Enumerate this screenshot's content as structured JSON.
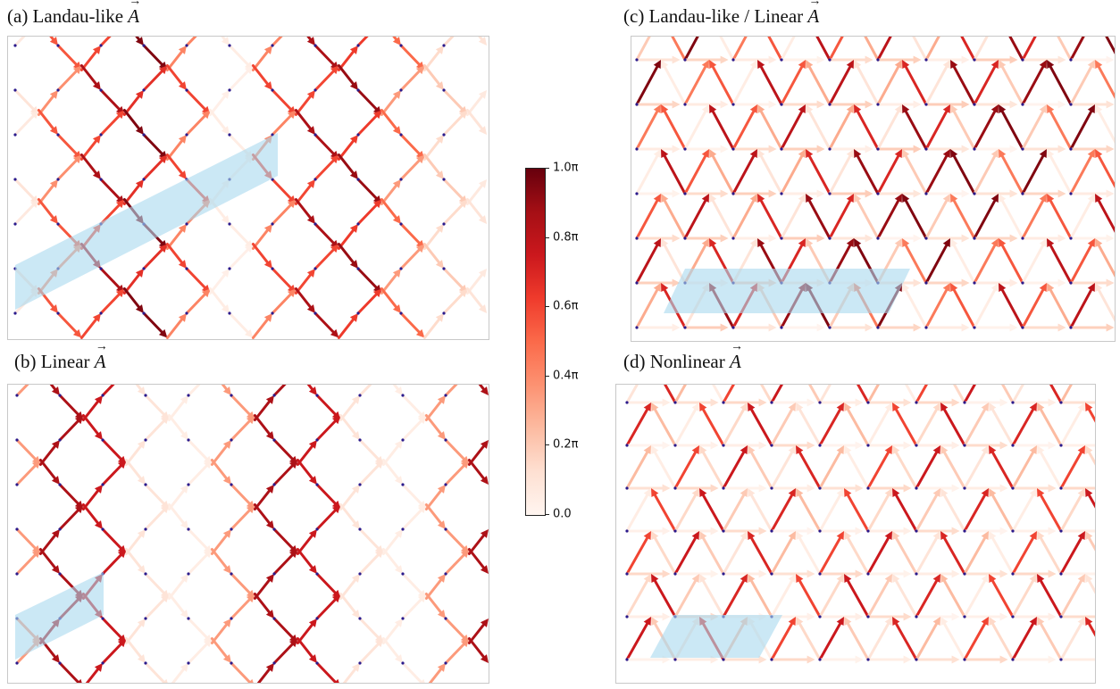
{
  "panels": {
    "a": {
      "label": "(a) Landau-like",
      "vector_symbol": "A"
    },
    "b": {
      "label": "(b) Linear",
      "vector_symbol": "A"
    },
    "c": {
      "label": "(c) Landau-like / Linear",
      "vector_symbol": "A"
    },
    "d": {
      "label": "(d) Nonlinear",
      "vector_symbol": "A"
    }
  },
  "colorbar": {
    "ticks": [
      "0.0",
      "0.2π",
      "0.4π",
      "0.6π",
      "0.8π",
      "1.0π"
    ],
    "colormap": "Reds",
    "min_color": "#fff5f0",
    "max_color": "#67000d"
  },
  "colors": {
    "unit_cell_fill": "#a8d8ef",
    "site_color": "#2a1a8c"
  }
}
